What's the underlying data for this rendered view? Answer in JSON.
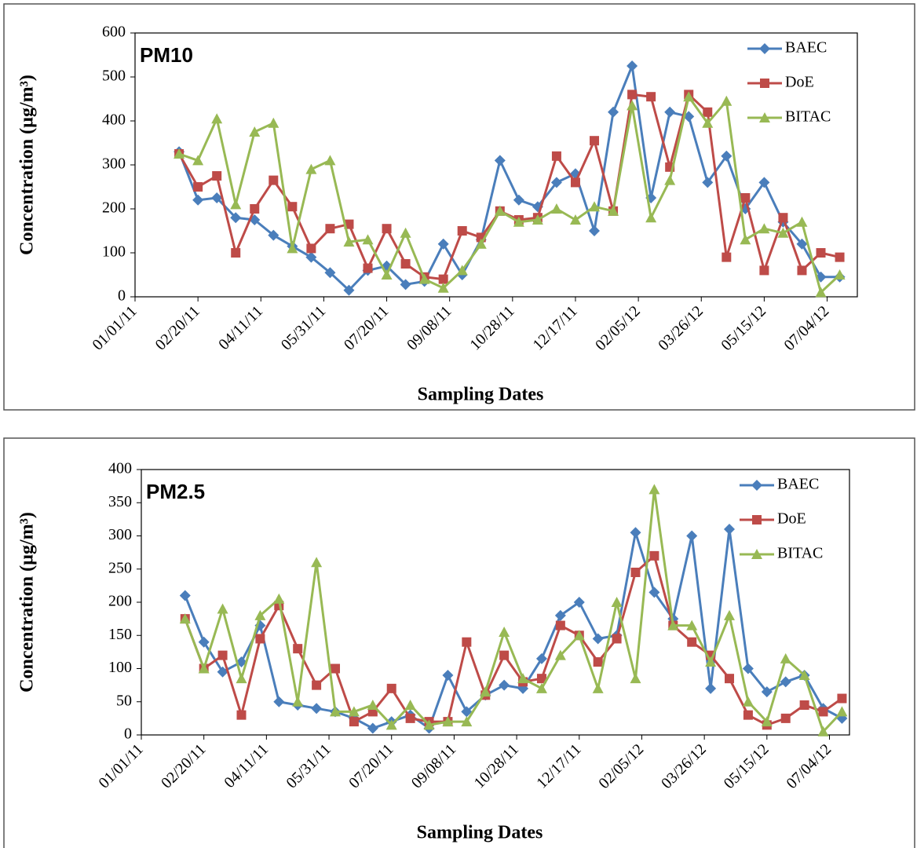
{
  "chart_data": [
    {
      "type": "line",
      "title": "PM10",
      "y_label": "Concentration (µg/m³)",
      "x_label": "Sampling Dates",
      "x": [
        "02/05/11",
        "02/20/11",
        "03/07/11",
        "03/22/11",
        "04/06/11",
        "04/21/11",
        "05/06/11",
        "05/21/11",
        "06/05/11",
        "06/20/11",
        "07/05/11",
        "07/20/11",
        "08/04/11",
        "08/19/11",
        "09/03/11",
        "09/18/11",
        "10/03/11",
        "10/18/11",
        "11/02/11",
        "11/17/11",
        "12/02/11",
        "12/17/11",
        "01/01/12",
        "01/16/12",
        "01/31/12",
        "02/15/12",
        "03/01/12",
        "03/16/12",
        "03/31/12",
        "04/15/12",
        "04/30/12",
        "05/15/12",
        "05/30/12",
        "06/14/12",
        "06/29/12",
        "07/14/12"
      ],
      "xlim": [
        "01/01/11",
        "07/28/12"
      ],
      "xticks": [
        "01/01/11",
        "02/20/11",
        "04/11/11",
        "05/31/11",
        "07/20/11",
        "09/08/11",
        "10/28/11",
        "12/17/11",
        "02/05/12",
        "03/26/12",
        "05/15/12",
        "07/04/12"
      ],
      "ylim": [
        0,
        600
      ],
      "yticks": [
        0,
        100,
        200,
        300,
        400,
        500,
        600
      ],
      "legend": "upper right",
      "series": [
        {
          "name": "BAEC",
          "color": "#4a7ebb",
          "marker": "diamond",
          "values": [
            330,
            220,
            225,
            180,
            175,
            140,
            115,
            90,
            55,
            15,
            60,
            70,
            28,
            35,
            120,
            50,
            130,
            310,
            220,
            205,
            260,
            280,
            150,
            420,
            525,
            225,
            420,
            410,
            260,
            320,
            200,
            260,
            170,
            120,
            45,
            45
          ]
        },
        {
          "name": "DoE",
          "color": "#be4b48",
          "marker": "square",
          "values": [
            325,
            250,
            275,
            100,
            200,
            265,
            205,
            110,
            155,
            165,
            65,
            155,
            75,
            45,
            40,
            150,
            135,
            195,
            175,
            180,
            320,
            260,
            355,
            195,
            460,
            455,
            295,
            460,
            420,
            90,
            225,
            60,
            180,
            60,
            100,
            90
          ]
        },
        {
          "name": "BITAC",
          "color": "#98b954",
          "marker": "triangle",
          "values": [
            325,
            310,
            405,
            210,
            375,
            395,
            110,
            290,
            310,
            125,
            130,
            50,
            145,
            40,
            20,
            60,
            120,
            195,
            170,
            175,
            200,
            175,
            205,
            195,
            435,
            180,
            265,
            455,
            395,
            445,
            130,
            155,
            145,
            170,
            10,
            50
          ]
        }
      ]
    },
    {
      "type": "line",
      "title": "PM2.5",
      "y_label": "Concentration (µg/m³)",
      "x_label": "Sampling Dates",
      "x": [
        "02/05/11",
        "02/20/11",
        "03/07/11",
        "03/22/11",
        "04/06/11",
        "04/21/11",
        "05/06/11",
        "05/21/11",
        "06/05/11",
        "06/20/11",
        "07/05/11",
        "07/20/11",
        "08/04/11",
        "08/19/11",
        "09/03/11",
        "09/18/11",
        "10/03/11",
        "10/18/11",
        "11/02/11",
        "11/17/11",
        "12/02/11",
        "12/17/11",
        "01/01/12",
        "01/16/12",
        "01/31/12",
        "02/15/12",
        "03/01/12",
        "03/16/12",
        "03/31/12",
        "04/15/12",
        "04/30/12",
        "05/15/12",
        "05/30/12",
        "06/14/12",
        "06/29/12",
        "07/14/12"
      ],
      "xlim": [
        "01/01/11",
        "07/20/12"
      ],
      "xticks": [
        "01/01/11",
        "02/20/11",
        "04/11/11",
        "05/31/11",
        "07/20/11",
        "09/08/11",
        "10/28/11",
        "12/17/11",
        "02/05/12",
        "03/26/12",
        "05/15/12",
        "07/04/12"
      ],
      "ylim": [
        0,
        400
      ],
      "yticks": [
        0,
        50,
        100,
        150,
        200,
        250,
        300,
        350,
        400
      ],
      "legend": "upper right",
      "series": [
        {
          "name": "BAEC",
          "color": "#4a7ebb",
          "marker": "diamond",
          "values": [
            210,
            140,
            95,
            110,
            165,
            50,
            45,
            40,
            35,
            25,
            10,
            20,
            30,
            10,
            90,
            35,
            60,
            75,
            70,
            115,
            180,
            200,
            145,
            150,
            305,
            215,
            175,
            300,
            70,
            310,
            100,
            65,
            80,
            90,
            40,
            25
          ]
        },
        {
          "name": "DoE",
          "color": "#be4b48",
          "marker": "square",
          "values": [
            175,
            100,
            120,
            30,
            145,
            195,
            130,
            75,
            100,
            20,
            35,
            70,
            25,
            20,
            20,
            140,
            60,
            120,
            80,
            85,
            165,
            150,
            110,
            145,
            245,
            270,
            165,
            140,
            120,
            85,
            30,
            15,
            25,
            45,
            35,
            55
          ]
        },
        {
          "name": "BITAC",
          "color": "#98b954",
          "marker": "triangle",
          "values": [
            175,
            100,
            190,
            85,
            180,
            205,
            50,
            260,
            35,
            35,
            45,
            15,
            45,
            15,
            20,
            20,
            65,
            155,
            85,
            70,
            120,
            150,
            70,
            200,
            85,
            370,
            165,
            165,
            110,
            180,
            50,
            20,
            115,
            90,
            5,
            35
          ]
        }
      ]
    }
  ]
}
